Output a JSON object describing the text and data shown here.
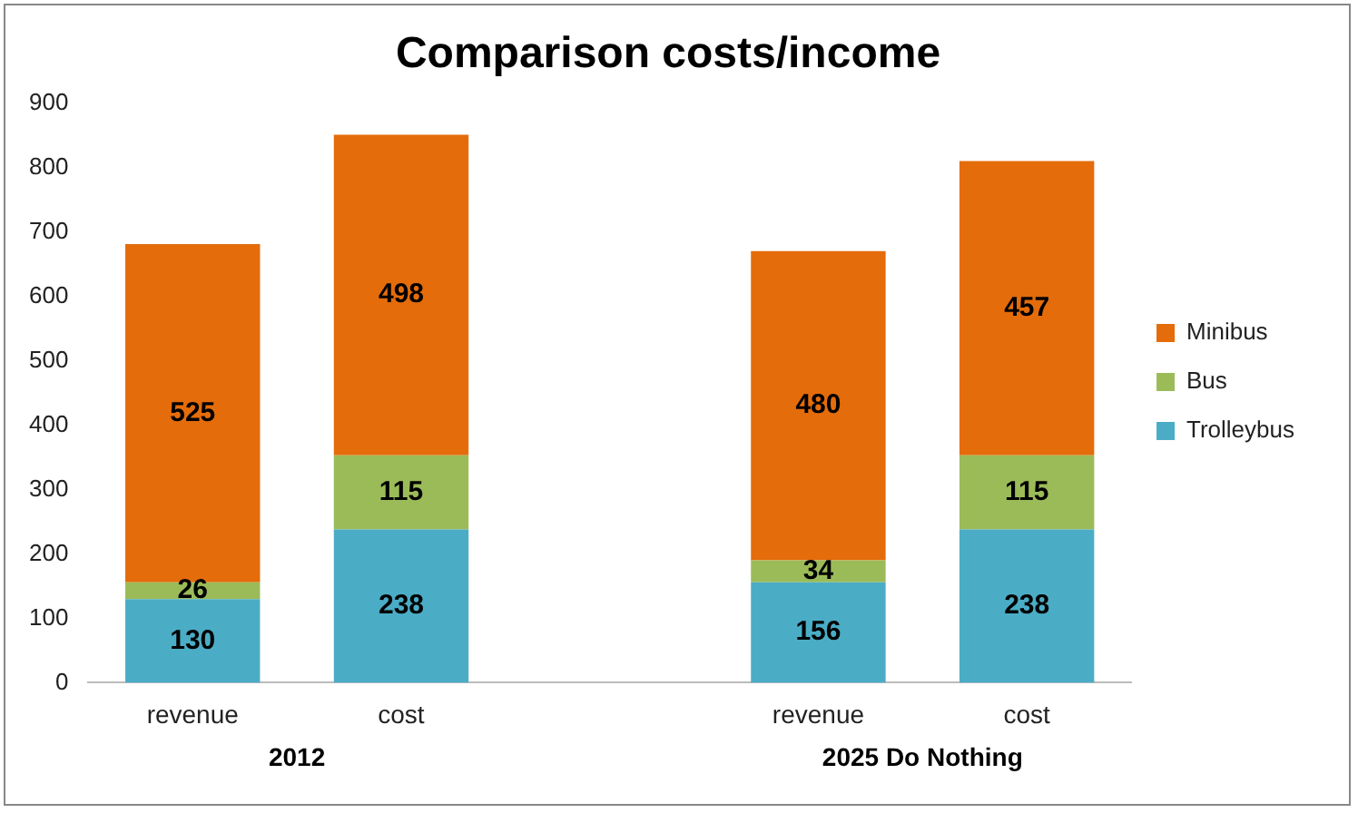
{
  "chart_data": {
    "type": "bar",
    "title": "Comparison costs/income",
    "categories": [
      "revenue",
      "cost",
      null,
      "revenue",
      "cost"
    ],
    "stacked": true,
    "series": [
      {
        "name": "Trolleybus",
        "color": "#4bacc6",
        "values": [
          130,
          238,
          null,
          156,
          238
        ]
      },
      {
        "name": "Bus",
        "color": "#9bbb59",
        "values": [
          26,
          115,
          null,
          34,
          115
        ]
      },
      {
        "name": "Minibus",
        "color": "#e46c0a",
        "values": [
          525,
          498,
          null,
          480,
          457
        ]
      }
    ],
    "ylim": [
      0,
      900
    ],
    "yticks": [
      0,
      100,
      200,
      300,
      400,
      500,
      600,
      700,
      800,
      900
    ],
    "grid": false,
    "legend": "right",
    "data_labels": true,
    "annotations": [
      "2012",
      "2025 Do Nothing"
    ]
  }
}
